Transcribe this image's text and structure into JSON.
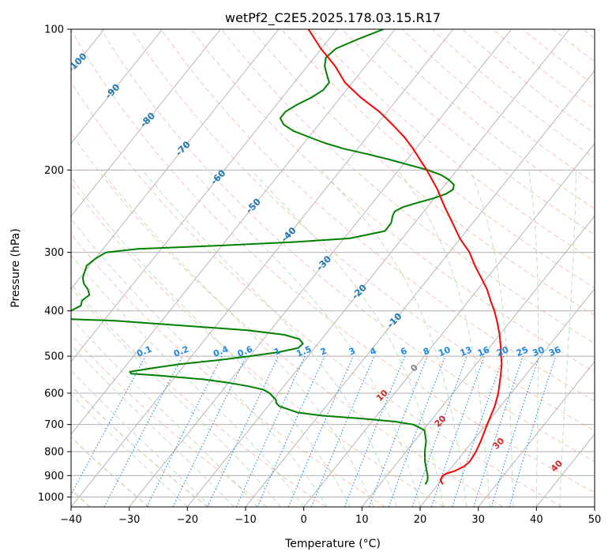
{
  "chart_data": {
    "type": "skewt",
    "title": "wetPf2_C2E5.2025.178.03.15.R17",
    "xlabel": "Temperature (°C)",
    "ylabel": "Pressure (hPa)",
    "xlim": [
      -40,
      50
    ],
    "ylim": [
      1050,
      100
    ],
    "x_ticks": [
      "−40",
      "−30",
      "−20",
      "−10",
      "0",
      "10",
      "20",
      "30",
      "40",
      "50"
    ],
    "x_tick_values": [
      -40,
      -30,
      -20,
      -10,
      0,
      10,
      20,
      30,
      40,
      50
    ],
    "y_ticks": [
      "100",
      "200",
      "300",
      "400",
      "500",
      "600",
      "700",
      "800",
      "900",
      "1000"
    ],
    "y_tick_values": [
      100,
      200,
      300,
      400,
      500,
      600,
      700,
      800,
      900,
      1000
    ],
    "colors": {
      "temperature": "#ff0000",
      "dewpoint": "#008000",
      "isotherm": "#b0b0b0",
      "dry_adiabat": "#f4a582",
      "moist_adiabat": "#a6d8a6",
      "mixing_ratio": "#1e88e5",
      "isotherm_label": "#1f77b4",
      "moist_label": "#d62728",
      "zero_label": "#808080",
      "grid": "#b0b0b0",
      "distant_dry": "#d2b48c"
    },
    "isotherm_labels": [
      "-100",
      "-90",
      "-80",
      "-70",
      "-60",
      "-50",
      "-40",
      "-30",
      "-20",
      "-10"
    ],
    "isotherm_label_values": [
      -100,
      -90,
      -80,
      -70,
      -60,
      -50,
      -40,
      -30,
      -20,
      -10
    ],
    "zero_label": "0",
    "moist_labels": [
      "10",
      "20",
      "30",
      "40"
    ],
    "mixing_ratio_labels": [
      "0.1",
      "0.2",
      "0.4",
      "0.6",
      "1",
      "1.5",
      "2",
      "3",
      "4",
      "6",
      "8",
      "10",
      "13",
      "16",
      "20",
      "25",
      "30",
      "36"
    ],
    "mixing_ratio_values": [
      0.1,
      0.2,
      0.4,
      0.6,
      1,
      1.5,
      2,
      3,
      4,
      6,
      8,
      10,
      13,
      16,
      20,
      25,
      30,
      36
    ],
    "temperature": {
      "pressure": [
        940,
        920,
        900,
        890,
        880,
        860,
        840,
        800,
        760,
        720,
        680,
        640,
        600,
        560,
        520,
        500,
        480,
        450,
        420,
        400,
        380,
        360,
        340,
        320,
        300,
        280,
        260,
        240,
        220,
        200,
        190,
        180,
        170,
        160,
        150,
        140,
        130,
        120,
        110,
        100
      ],
      "values": [
        20.8,
        19.8,
        19.6,
        20.0,
        21.0,
        22.0,
        22.3,
        22.0,
        21.4,
        20.6,
        19.8,
        19.0,
        17.8,
        16.2,
        14.4,
        13.2,
        12.0,
        10.0,
        7.6,
        5.8,
        3.7,
        1.6,
        -1.0,
        -3.8,
        -6.5,
        -10.1,
        -13.4,
        -17.0,
        -20.7,
        -25.2,
        -27.8,
        -30.5,
        -33.6,
        -37.3,
        -41.4,
        -46.5,
        -51.3,
        -55.2,
        -60.1,
        -64.9
      ]
    },
    "dewpoint": {
      "pressure": [
        940,
        920,
        900,
        880,
        860,
        840,
        800,
        760,
        720,
        700,
        690,
        680,
        670,
        660,
        650,
        640,
        630,
        620,
        600,
        590,
        580,
        570,
        560,
        550,
        545,
        540,
        530,
        520,
        510,
        500,
        490,
        480,
        470,
        460,
        450,
        440,
        430,
        420,
        415,
        410,
        400,
        390,
        380,
        370,
        360,
        350,
        340,
        330,
        320,
        310,
        300,
        295,
        290,
        285,
        280,
        270,
        260,
        250,
        245,
        240,
        235,
        230,
        225,
        220,
        215,
        210,
        205,
        200,
        195,
        190,
        185,
        180,
        175,
        170,
        165,
        160,
        155,
        150,
        145,
        140,
        135,
        130,
        125,
        120,
        115,
        110,
        105,
        100
      ],
      "values": [
        17.8,
        17.6,
        17.0,
        16.2,
        15.4,
        14.6,
        13.2,
        12.0,
        10.2,
        7.5,
        4.0,
        -2.0,
        -9.5,
        -14.0,
        -16.0,
        -18.0,
        -19.0,
        -19.5,
        -21.5,
        -23.0,
        -26.0,
        -30.0,
        -35.0,
        -43.0,
        -48.0,
        -48.5,
        -45.0,
        -41.0,
        -35.0,
        -30.0,
        -25.5,
        -22.8,
        -22.6,
        -23.8,
        -27.0,
        -34.0,
        -46.0,
        -58.0,
        -70.0,
        -70.0,
        -67.0,
        -66.0,
        -66.5,
        -66.0,
        -67.0,
        -68.5,
        -69.5,
        -70.0,
        -70.5,
        -70.0,
        -69.0,
        -64.0,
        -50.0,
        -38.0,
        -29.0,
        -24.0,
        -24.0,
        -24.8,
        -25.0,
        -24.2,
        -22.3,
        -20.2,
        -18.6,
        -18.0,
        -18.5,
        -20.0,
        -22.0,
        -25.0,
        -29.0,
        -33.0,
        -37.5,
        -42.5,
        -46.5,
        -50.0,
        -53.5,
        -56.0,
        -57.5,
        -57.5,
        -56.5,
        -55.0,
        -54.0,
        -54.0,
        -55.5,
        -57.0,
        -58.0,
        -57.5,
        -55.0,
        -52.0
      ]
    }
  }
}
